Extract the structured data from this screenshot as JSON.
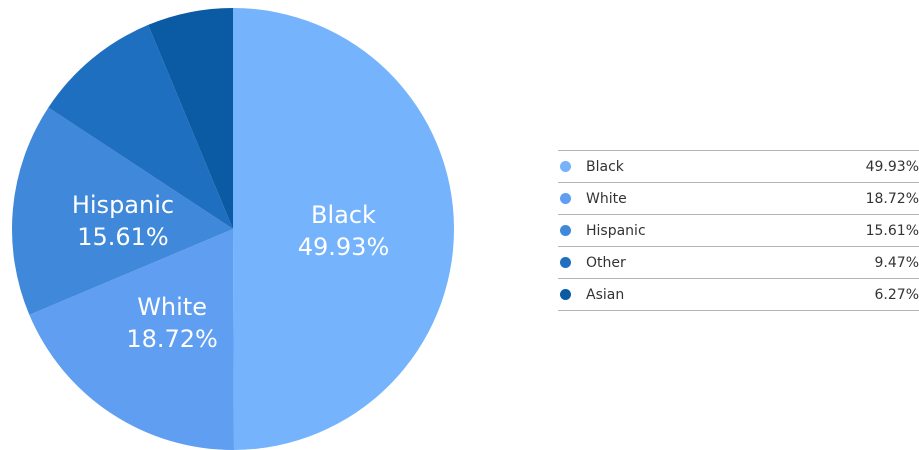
{
  "chart_data": {
    "type": "pie",
    "slices": [
      {
        "label": "Black",
        "value": 49.93,
        "display": "49.93%",
        "color": "#75b3fd"
      },
      {
        "label": "White",
        "value": 18.72,
        "display": "18.72%",
        "color": "#5f9ef0"
      },
      {
        "label": "Hispanic",
        "value": 15.61,
        "display": "15.61%",
        "color": "#3f88da"
      },
      {
        "label": "Other",
        "value": 9.47,
        "display": "9.47%",
        "color": "#1f6fc0"
      },
      {
        "label": "Asian",
        "value": 6.27,
        "display": "6.27%",
        "color": "#0a5aa4"
      }
    ],
    "legend_placement": "right"
  }
}
